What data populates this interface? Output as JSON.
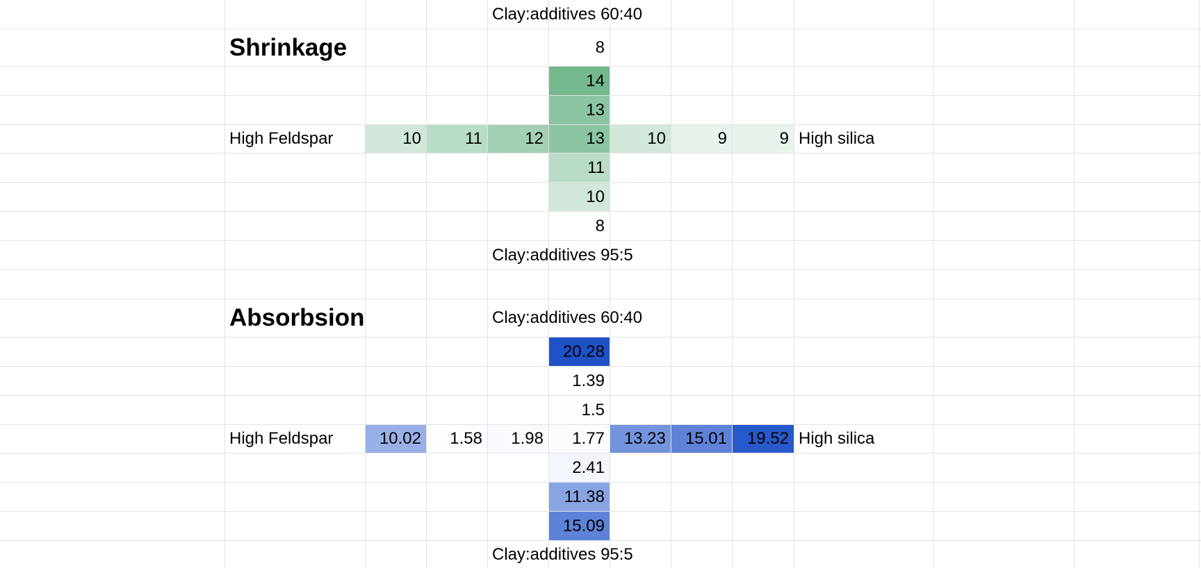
{
  "sheet": {
    "sections": [
      {
        "title": "Shrinkage",
        "top_label": "Clay:additives 60:40",
        "bottom_label": "Clay:additives 95:5",
        "left_label": "High Feldspar",
        "right_label": "High silica",
        "vertical_above": [
          8,
          14,
          13
        ],
        "horizontal": [
          10,
          11,
          12,
          13,
          10,
          9,
          9
        ],
        "vertical_below": [
          11,
          10,
          8
        ],
        "scale_colors": [
          "#ffffff",
          "#73b88e"
        ]
      },
      {
        "title": "Absorbsion",
        "top_label": "Clay:additives 60:40",
        "bottom_label": "Clay:additives 95:5",
        "left_label": "High Feldspar",
        "right_label": "High silica",
        "vertical_above": [
          20.28,
          1.39,
          1.5
        ],
        "horizontal": [
          10.02,
          1.58,
          1.98,
          1.77,
          13.23,
          15.01,
          19.52
        ],
        "vertical_below": [
          2.41,
          11.38,
          15.09
        ],
        "scale_colors": [
          "#ffffff",
          "#1f52c8"
        ]
      }
    ]
  }
}
